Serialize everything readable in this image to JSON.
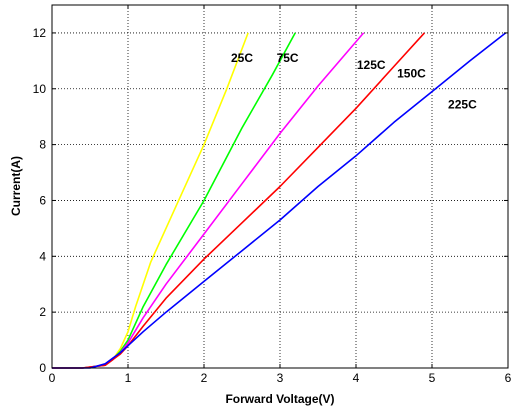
{
  "chart_data": {
    "type": "line",
    "title": "",
    "xlabel": "Forward Voltage(V)",
    "ylabel": "Current(A)",
    "xlim": [
      0,
      6
    ],
    "ylim": [
      0,
      13
    ],
    "xticks": [
      0,
      1,
      2,
      3,
      4,
      5,
      6
    ],
    "yticks": [
      0,
      2,
      4,
      6,
      8,
      10,
      12
    ],
    "grid": true,
    "series": [
      {
        "name": "25C",
        "color": "#ffff00",
        "x": [
          0,
          0.4,
          0.7,
          0.8,
          0.9,
          1.0,
          1.1,
          1.3,
          1.6,
          2.0,
          2.3,
          2.58
        ],
        "y": [
          0,
          0,
          0.1,
          0.3,
          0.7,
          1.3,
          2.2,
          3.8,
          5.6,
          8.0,
          10.0,
          12.0
        ]
      },
      {
        "name": "75C",
        "color": "#00ff00",
        "x": [
          0,
          0.4,
          0.7,
          0.8,
          0.9,
          1.0,
          1.2,
          1.5,
          2.0,
          2.5,
          2.9,
          3.2
        ],
        "y": [
          0,
          0,
          0.1,
          0.3,
          0.6,
          1.0,
          2.2,
          3.7,
          6.0,
          8.6,
          10.5,
          12.0
        ]
      },
      {
        "name": "125C",
        "color": "#ff00ff",
        "x": [
          0,
          0.4,
          0.7,
          0.8,
          0.9,
          1.0,
          1.2,
          1.5,
          2.0,
          2.5,
          3.0,
          3.5,
          4.1
        ],
        "y": [
          0,
          0,
          0.1,
          0.3,
          0.55,
          0.9,
          1.8,
          3.0,
          4.8,
          6.6,
          8.4,
          10.1,
          12.0
        ]
      },
      {
        "name": "150C",
        "color": "#ff0000",
        "x": [
          0,
          0.4,
          0.7,
          0.8,
          0.9,
          1.0,
          1.2,
          1.5,
          2.0,
          2.5,
          3.0,
          3.5,
          4.0,
          4.5,
          4.9
        ],
        "y": [
          0,
          0,
          0.1,
          0.3,
          0.5,
          0.8,
          1.5,
          2.5,
          3.9,
          5.2,
          6.5,
          7.9,
          9.3,
          10.8,
          12.0
        ]
      },
      {
        "name": "225C",
        "color": "#0000ff",
        "x": [
          0,
          0.5,
          0.7,
          0.8,
          0.9,
          1.0,
          1.2,
          1.5,
          2.0,
          2.5,
          3.0,
          3.5,
          4.0,
          4.5,
          5.0,
          5.5,
          5.97
        ],
        "y": [
          0,
          0,
          0.15,
          0.35,
          0.55,
          0.8,
          1.3,
          2.0,
          3.1,
          4.2,
          5.3,
          6.5,
          7.6,
          8.8,
          9.9,
          11.0,
          12.0
        ]
      }
    ],
    "annotations": [
      {
        "text": "25C",
        "x": 2.5,
        "y": 10.95
      },
      {
        "text": "75C",
        "x": 3.1,
        "y": 10.95
      },
      {
        "text": "125C",
        "x": 4.2,
        "y": 10.7
      },
      {
        "text": "150C",
        "x": 4.73,
        "y": 10.4
      },
      {
        "text": "225C",
        "x": 5.4,
        "y": 9.3
      }
    ]
  }
}
